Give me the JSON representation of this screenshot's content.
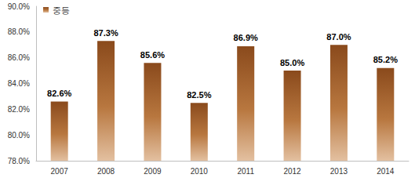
{
  "chart_data": {
    "type": "bar",
    "categories": [
      "2007",
      "2008",
      "2009",
      "2010",
      "2011",
      "2012",
      "2013",
      "2014"
    ],
    "series": [
      {
        "name": "중등",
        "color": "#8a4a1c",
        "values": [
          82.6,
          87.3,
          85.6,
          82.5,
          86.9,
          85.0,
          87.0,
          85.2
        ],
        "value_labels": [
          "82.6%",
          "87.3%",
          "85.6%",
          "82.5%",
          "86.9%",
          "85.0%",
          "87.0%",
          "85.2%"
        ]
      }
    ],
    "ylim": [
      78,
      90
    ],
    "yticks": [
      {
        "value": 78,
        "label": "78.0%"
      },
      {
        "value": 80,
        "label": "80.0%"
      },
      {
        "value": 82,
        "label": "82.0%"
      },
      {
        "value": 84,
        "label": "84.0%"
      },
      {
        "value": 86,
        "label": "86.0%"
      },
      {
        "value": 88,
        "label": "88.0%"
      },
      {
        "value": 90,
        "label": "90.0%"
      }
    ],
    "grid": false,
    "legend": "top-left",
    "data_labels": true
  }
}
